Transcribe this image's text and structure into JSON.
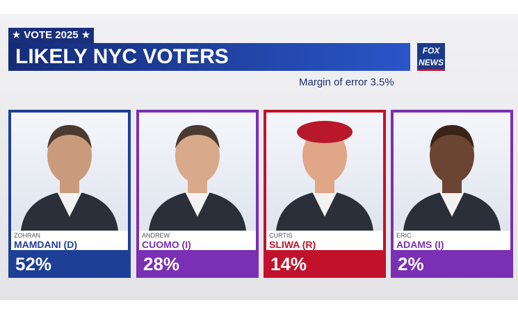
{
  "header": {
    "tag": "★ VOTE 2025 ★",
    "title": "LIKELY NYC VOTERS",
    "logo_top": "FOX",
    "logo_bottom": "NEWS",
    "margin_note": "Margin of error 3.5%"
  },
  "candidates": [
    {
      "first": "ZOHRAN",
      "last": "MAMDANI (D)",
      "result": "52%",
      "color": "#1d3f96"
    },
    {
      "first": "ANDREW",
      "last": "CUOMO (I)",
      "result": "28%",
      "color": "#7b2fb4"
    },
    {
      "first": "CURTIS",
      "last": "SLIWA (R)",
      "result": "14%",
      "color": "#c2122b"
    },
    {
      "first": "ERIC",
      "last": "ADAMS (I)",
      "result": "2%",
      "color": "#7b2fb4"
    }
  ]
}
